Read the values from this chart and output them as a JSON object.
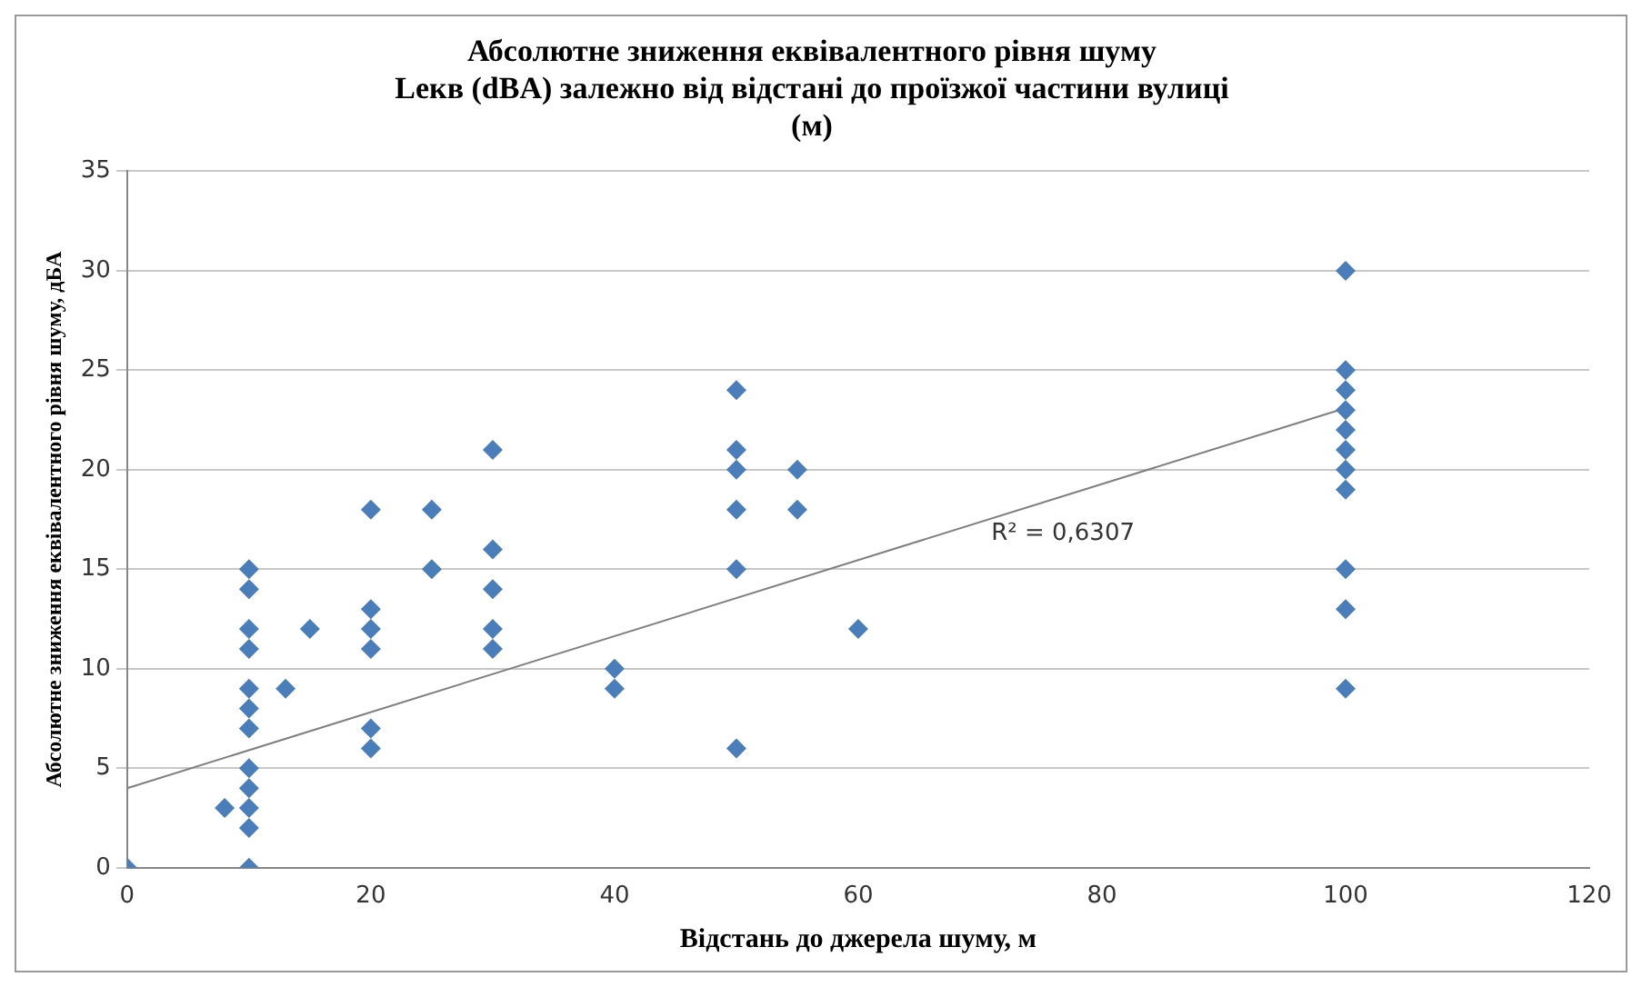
{
  "chart_data": {
    "type": "scatter",
    "title": "Абсолютне зниження еквівалентного рівня шуму\nLекв (dBA) залежно від відстані до проїзжої частини вулиці\n(м)",
    "xlabel": "Відстань до джерела шуму, м",
    "ylabel": "Абсолютне зниження еквівалентного рівня шуму, дБА",
    "series": [
      {
        "color": "#4a7ebb",
        "x": [
          0,
          8,
          10,
          10,
          10,
          10,
          10,
          10,
          10,
          10,
          10,
          10,
          10,
          10,
          13,
          15,
          20,
          20,
          20,
          20,
          20,
          20,
          25,
          25,
          30,
          30,
          30,
          30,
          30,
          40,
          40,
          50,
          50,
          50,
          50,
          50,
          50,
          55,
          55,
          60,
          100,
          100,
          100,
          100,
          100,
          100,
          100,
          100,
          100,
          100,
          100
        ],
        "values": [
          0,
          3,
          15,
          14,
          12,
          11,
          9,
          8,
          7,
          5,
          4,
          3,
          2,
          0,
          9,
          12,
          18,
          13,
          12,
          11,
          7,
          6,
          18,
          15,
          21,
          16,
          14,
          12,
          11,
          10,
          9,
          24,
          21,
          20,
          18,
          15,
          6,
          20,
          18,
          12,
          30,
          25,
          24,
          23,
          22,
          21,
          20,
          19,
          15,
          13,
          9
        ]
      },
      {
        "type": "line",
        "color": "#7f7f7f",
        "x": [
          0,
          100
        ],
        "values": [
          4.0,
          23.1
        ],
        "marker": "none"
      }
    ],
    "annotations": [
      "R² = 0,6307"
    ],
    "xlim": [
      0,
      120
    ],
    "xticks": [
      0,
      20,
      40,
      60,
      80,
      100,
      120
    ],
    "ylim": [
      0,
      35
    ],
    "yticks": [
      0,
      5,
      10,
      15,
      20,
      25,
      30,
      35
    ],
    "grid": "y",
    "legend": false,
    "marker": "diamond"
  }
}
